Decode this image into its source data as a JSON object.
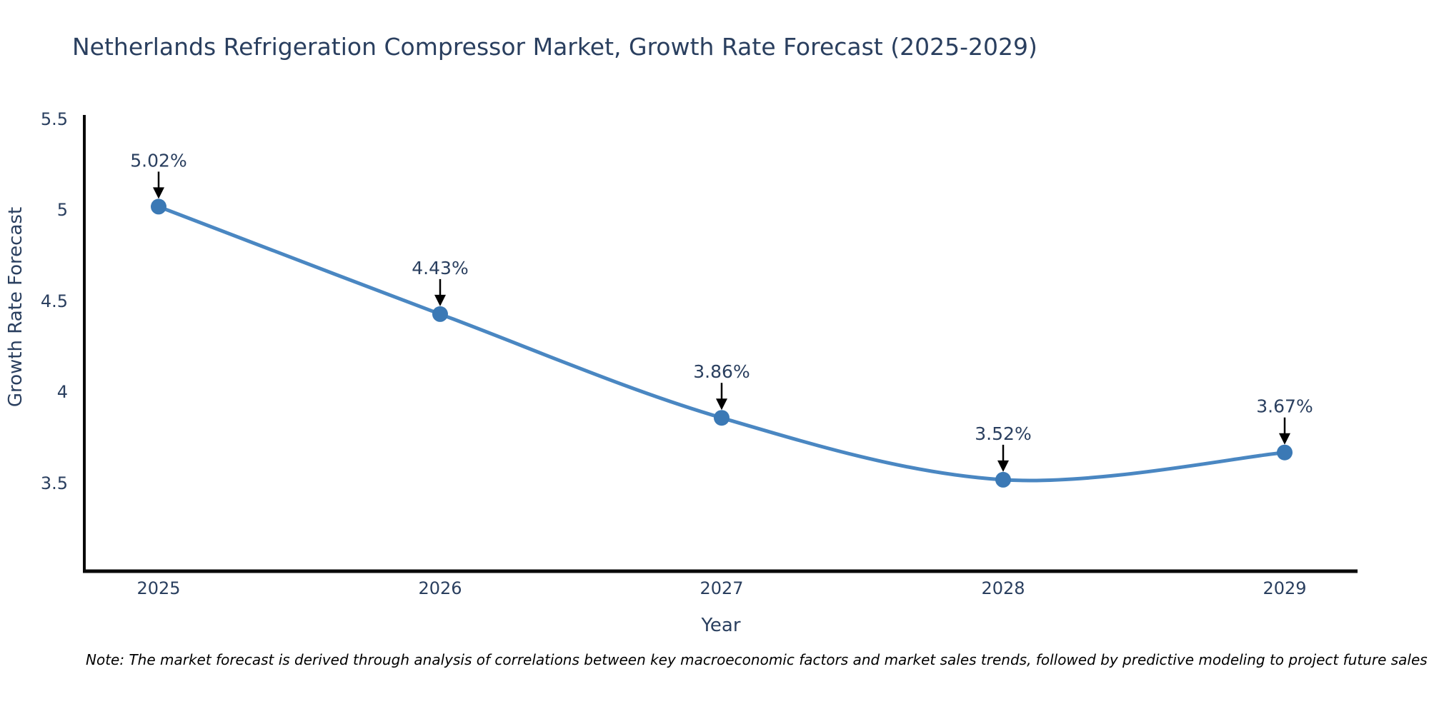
{
  "title": "Netherlands Refrigeration Compressor Market, Growth Rate Forecast (2025-2029)",
  "note": "Note: The market forecast is derived through analysis of correlations between key macroeconomic factors and market sales trends, followed by predictive modeling to project future sales",
  "chart_data": {
    "type": "line",
    "title": "Netherlands Refrigeration Compressor Market, Growth Rate Forecast (2025-2029)",
    "xlabel": "Year",
    "ylabel": "Growth Rate Forecast",
    "x": [
      2025,
      2026,
      2027,
      2028,
      2029
    ],
    "categories": [
      "2025",
      "2026",
      "2027",
      "2028",
      "2029"
    ],
    "series": [
      {
        "name": "Growth Rate Forecast",
        "values": [
          5.02,
          4.43,
          3.86,
          3.52,
          3.67
        ]
      }
    ],
    "point_labels": [
      "5.02%",
      "4.43%",
      "3.86%",
      "3.52%",
      "3.67%"
    ],
    "x_ticks": [
      "2025",
      "2026",
      "2027",
      "2028",
      "2029"
    ],
    "y_ticks": [
      "5.5",
      "5",
      "4.5",
      "4",
      "3.5"
    ],
    "y_tick_values": [
      5.5,
      5.0,
      4.5,
      4.0,
      3.5
    ],
    "ylim": [
      3.0,
      5.5
    ],
    "grid": false,
    "legend_position": "none",
    "line_shape": "spline",
    "annotation_style": "down-arrow",
    "colors": {
      "line": "#4a87c2",
      "marker": "#3b79b5",
      "axis": "#0a0a0a",
      "text": "#2a3f5f",
      "annotation_arrow": "#000000",
      "background": "#ffffff"
    }
  }
}
